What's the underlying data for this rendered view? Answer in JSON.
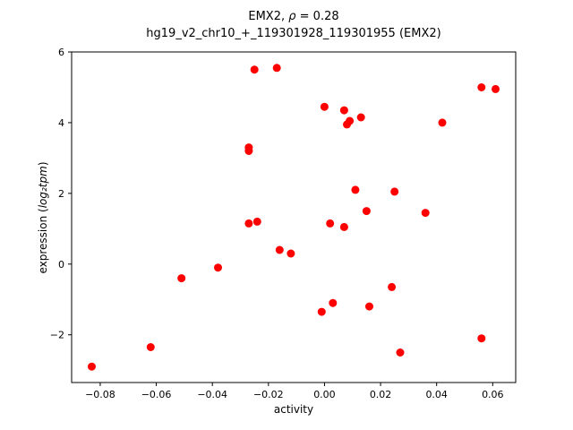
{
  "chart_data": {
    "type": "scatter",
    "title": "EMX2, ρ = 0.28",
    "title_gene": "EMX2, ",
    "title_rho": "ρ",
    "title_value": " = 0.28",
    "subtitle": "hg19_v2_chr10_+_119301928_119301955 (EMX2)",
    "xlabel": "activity",
    "ylabel_prefix": "expression (",
    "ylabel_math": "log₂tpm",
    "ylabel_suffix": ")",
    "marker_color": "#ff0000",
    "axis_color": "#000000",
    "xlim": [
      -0.0902,
      0.0682
    ],
    "ylim": [
      -3.35,
      6.0
    ],
    "xticks": {
      "values": [
        -0.08,
        -0.06,
        -0.04,
        -0.02,
        0.0,
        0.02,
        0.04,
        0.06
      ],
      "labels": [
        "−0.08",
        "−0.06",
        "−0.04",
        "−0.02",
        "0.00",
        "0.02",
        "0.04",
        "0.06"
      ]
    },
    "yticks": {
      "values": [
        -2,
        0,
        2,
        4,
        6
      ],
      "labels": [
        "−2",
        "0",
        "2",
        "4",
        "6"
      ]
    },
    "points": [
      [
        -0.083,
        -2.9
      ],
      [
        -0.062,
        -2.35
      ],
      [
        -0.051,
        -0.4
      ],
      [
        -0.038,
        -0.1
      ],
      [
        -0.027,
        3.3
      ],
      [
        -0.027,
        3.2
      ],
      [
        -0.025,
        5.5
      ],
      [
        -0.027,
        1.15
      ],
      [
        -0.024,
        1.2
      ],
      [
        -0.017,
        5.55
      ],
      [
        -0.016,
        0.4
      ],
      [
        -0.012,
        0.3
      ],
      [
        0.0,
        4.45
      ],
      [
        -0.001,
        -1.35
      ],
      [
        0.002,
        1.15
      ],
      [
        0.003,
        -1.1
      ],
      [
        0.007,
        4.35
      ],
      [
        0.008,
        3.95
      ],
      [
        0.009,
        4.05
      ],
      [
        0.007,
        1.05
      ],
      [
        0.011,
        2.1
      ],
      [
        0.013,
        4.15
      ],
      [
        0.015,
        1.5
      ],
      [
        0.016,
        -1.2
      ],
      [
        0.024,
        -0.65
      ],
      [
        0.025,
        2.05
      ],
      [
        0.027,
        -2.5
      ],
      [
        0.036,
        1.45
      ],
      [
        0.042,
        4.0
      ],
      [
        0.056,
        5.0
      ],
      [
        0.061,
        4.95
      ],
      [
        0.056,
        -2.1
      ]
    ]
  }
}
